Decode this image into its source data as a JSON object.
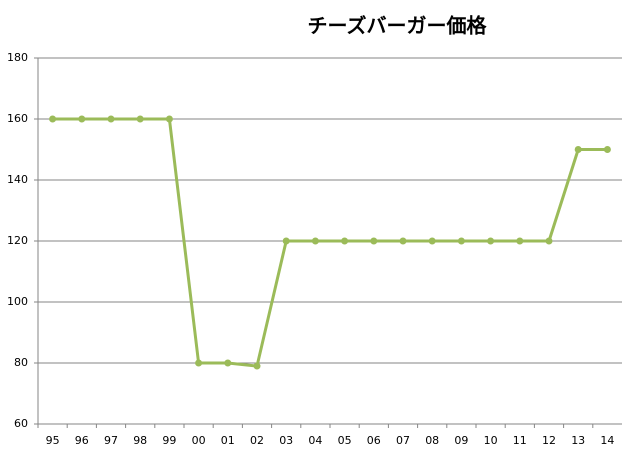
{
  "chart_data": {
    "type": "line",
    "title": "チーズバーガー価格",
    "categories": [
      "95",
      "96",
      "97",
      "98",
      "99",
      "00",
      "01",
      "02",
      "03",
      "04",
      "05",
      "06",
      "07",
      "08",
      "09",
      "10",
      "11",
      "12",
      "13",
      "14"
    ],
    "values": [
      160,
      160,
      160,
      160,
      160,
      80,
      80,
      79,
      120,
      120,
      120,
      120,
      120,
      120,
      120,
      120,
      120,
      120,
      150,
      150
    ],
    "color": "#9bbb59",
    "ylim": [
      60,
      180
    ],
    "yticks": [
      60,
      80,
      100,
      120,
      140,
      160,
      180
    ],
    "grid": true
  }
}
